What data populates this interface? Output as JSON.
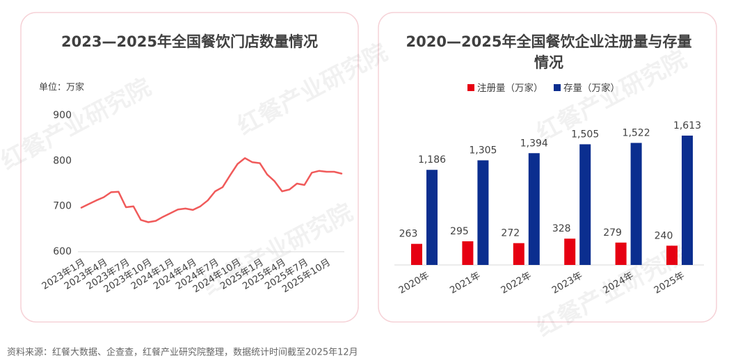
{
  "chart_data": [
    {
      "type": "line",
      "title": "2023—2025年全国餐饮门店数量情况",
      "unit_label": "单位：万家",
      "categories": [
        "2023年1月",
        null,
        null,
        "2023年4月",
        null,
        null,
        "2023年7月",
        null,
        null,
        "2023年10月",
        null,
        null,
        "2024年1月",
        null,
        null,
        "2024年4月",
        null,
        null,
        "2024年7月",
        null,
        null,
        "2024年10月",
        null,
        null,
        "2025年1月",
        null,
        null,
        "2025年4月",
        null,
        null,
        "2025年7月",
        null,
        null,
        "2025年10月",
        null,
        null
      ],
      "values": [
        697,
        705,
        713,
        720,
        731,
        732,
        698,
        700,
        670,
        665,
        668,
        677,
        685,
        693,
        695,
        692,
        700,
        713,
        733,
        742,
        768,
        793,
        806,
        797,
        795,
        770,
        755,
        733,
        737,
        750,
        747,
        774,
        778,
        776,
        776,
        772
      ],
      "color": "#f05a5a",
      "ylim": [
        600,
        900
      ],
      "yticks": [
        600,
        700,
        800,
        900
      ],
      "grid": false
    },
    {
      "type": "bar",
      "title": "2020—2025年全国餐饮企业注册量与存量情况",
      "categories": [
        "2020年",
        "2021年",
        "2022年",
        "2023年",
        "2024年",
        "2025年"
      ],
      "series": [
        {
          "name": "注册量（万家）",
          "color": "#e60012",
          "values": [
            263,
            295,
            272,
            328,
            279,
            240
          ]
        },
        {
          "name": "存量（万家）",
          "color": "#0b2e8f",
          "values": [
            1186,
            1305,
            1394,
            1505,
            1522,
            1613
          ],
          "value_labels": [
            "1,186",
            "1,305",
            "1,394",
            "1,505",
            "1,522",
            "1,613"
          ]
        }
      ],
      "legend": "top"
    }
  ],
  "watermark": "红餐产业研究院",
  "source": "资料来源：红餐大数据、企查查，红餐产业研究院整理，数据统计时间截至2025年12月"
}
